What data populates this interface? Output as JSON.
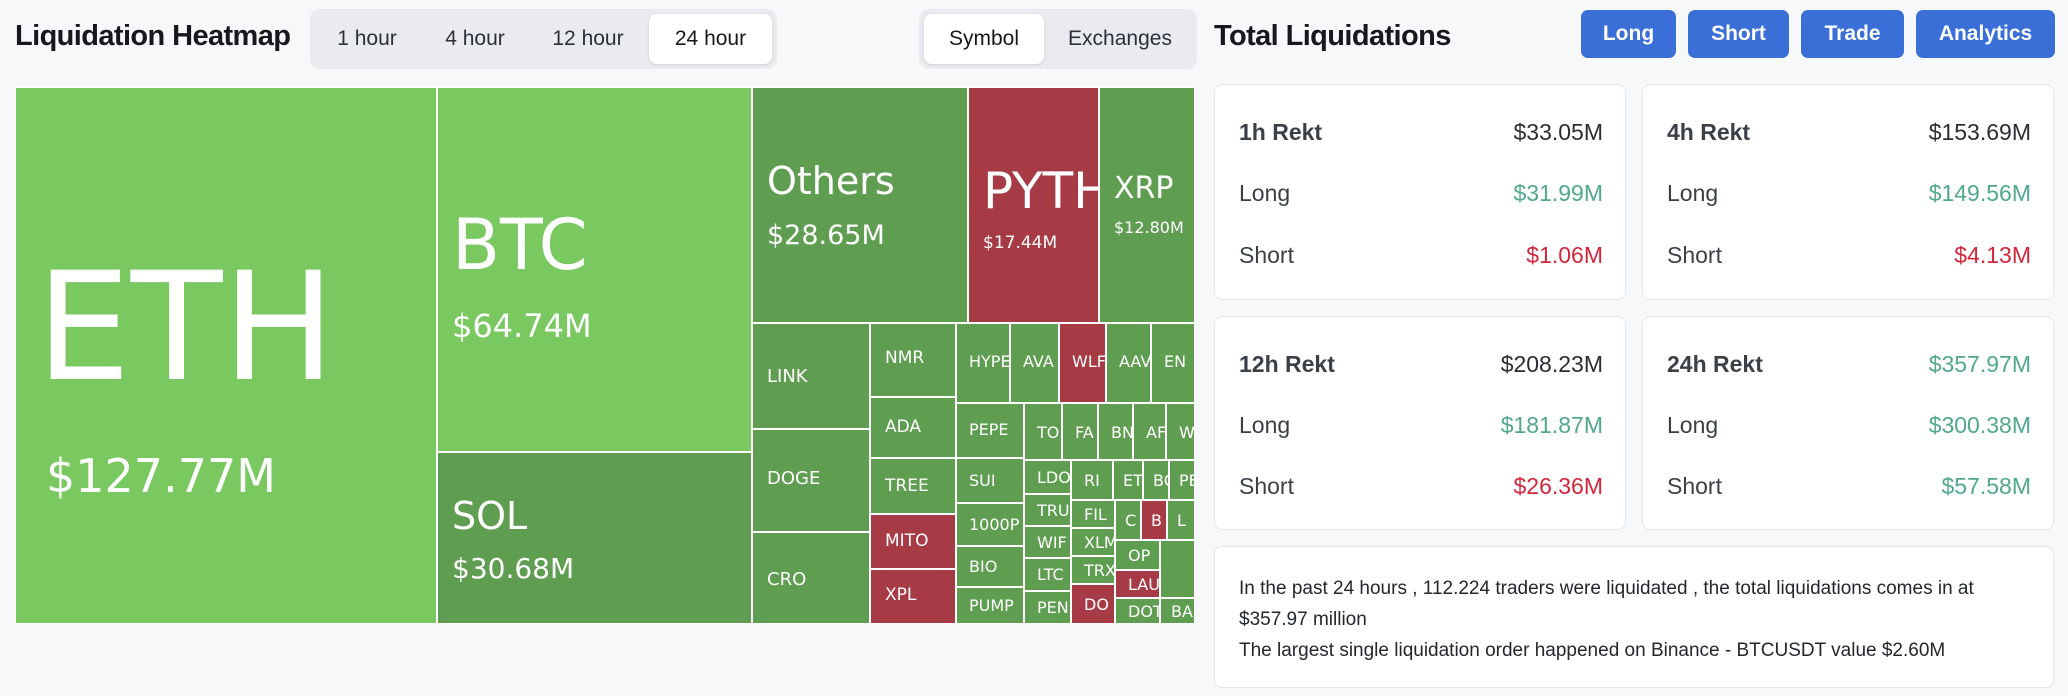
{
  "header": {
    "title": "Liquidation Heatmap",
    "time_tabs": [
      "1 hour",
      "4 hour",
      "12 hour",
      "24 hour"
    ],
    "active_time_tab": "24 hour",
    "view_tabs": [
      "Symbol",
      "Exchanges"
    ],
    "active_view_tab": "Symbol"
  },
  "totals": {
    "title": "Total Liquidations",
    "buttons": [
      "Long",
      "Short",
      "Trade",
      "Analytics"
    ],
    "accent_color": "#3a6fd8"
  },
  "treemap": {
    "tiles": [
      {
        "symbol": "ETH",
        "value": "$127.77M",
        "color": "light-green"
      },
      {
        "symbol": "BTC",
        "value": "$64.74M",
        "color": "light-green"
      },
      {
        "symbol": "SOL",
        "value": "$30.68M",
        "color": "dark-green"
      },
      {
        "symbol": "Others",
        "value": "$28.65M",
        "color": "dark-green"
      },
      {
        "symbol": "PYTH",
        "value": "$17.44M",
        "color": "red"
      },
      {
        "symbol": "XRP",
        "value": "$12.80M",
        "color": "dark-green"
      },
      {
        "symbol": "LINK"
      },
      {
        "symbol": "DOGE"
      },
      {
        "symbol": "CRO"
      },
      {
        "symbol": "NMR"
      },
      {
        "symbol": "ADA"
      },
      {
        "symbol": "TREE"
      },
      {
        "symbol": "MITO",
        "color": "red"
      },
      {
        "symbol": "XPL",
        "color": "red"
      },
      {
        "symbol": "HYPE"
      },
      {
        "symbol": "AVA"
      },
      {
        "symbol": "WLF",
        "color": "red"
      },
      {
        "symbol": "AAV"
      },
      {
        "symbol": "EN"
      },
      {
        "symbol": "PEPE"
      },
      {
        "symbol": "SUI"
      },
      {
        "symbol": "1000P"
      },
      {
        "symbol": "BIO"
      },
      {
        "symbol": "PUMP"
      },
      {
        "symbol": "TO"
      },
      {
        "symbol": "FA"
      },
      {
        "symbol": "BN"
      },
      {
        "symbol": "AF"
      },
      {
        "symbol": "W"
      },
      {
        "symbol": "LDO"
      },
      {
        "symbol": "TRU"
      },
      {
        "symbol": "WIF"
      },
      {
        "symbol": "LTC"
      },
      {
        "symbol": "PEN"
      },
      {
        "symbol": "RI"
      },
      {
        "symbol": "ET"
      },
      {
        "symbol": "BC"
      },
      {
        "symbol": "PE"
      },
      {
        "symbol": "FIL"
      },
      {
        "symbol": "C"
      },
      {
        "symbol": "B",
        "color": "red"
      },
      {
        "symbol": "L"
      },
      {
        "symbol": "XLM"
      },
      {
        "symbol": "TRX"
      },
      {
        "symbol": "OP"
      },
      {
        "symbol": "LAU",
        "color": "red"
      },
      {
        "symbol": "DO",
        "color": "red"
      },
      {
        "symbol": "DOT"
      },
      {
        "symbol": "BA"
      }
    ]
  },
  "stats": [
    {
      "title": "1h Rekt",
      "total": "$33.05M",
      "long_label": "Long",
      "long": "$31.99M",
      "short_label": "Short",
      "short": "$1.06M"
    },
    {
      "title": "4h Rekt",
      "total": "$153.69M",
      "long_label": "Long",
      "long": "$149.56M",
      "short_label": "Short",
      "short": "$4.13M"
    },
    {
      "title": "12h Rekt",
      "total": "$208.23M",
      "long_label": "Long",
      "long": "$181.87M",
      "short_label": "Short",
      "short": "$26.36M"
    },
    {
      "title": "24h Rekt",
      "total": "$357.97M",
      "long_label": "Long",
      "long": "$300.38M",
      "short_label": "Short",
      "short": "$57.58M"
    }
  ],
  "summary": {
    "line1": "In the past 24 hours , 112.224 traders were liquidated , the total liquidations comes in at $357.97 million",
    "line2": "The largest single liquidation order happened on Binance - BTCUSDT value $2.60M"
  },
  "colors": {
    "light_green": "#79c860",
    "dark_green": "#5f9e50",
    "red": "#a63b45",
    "positive": "#4fa98a",
    "negative": "#d3263a"
  }
}
